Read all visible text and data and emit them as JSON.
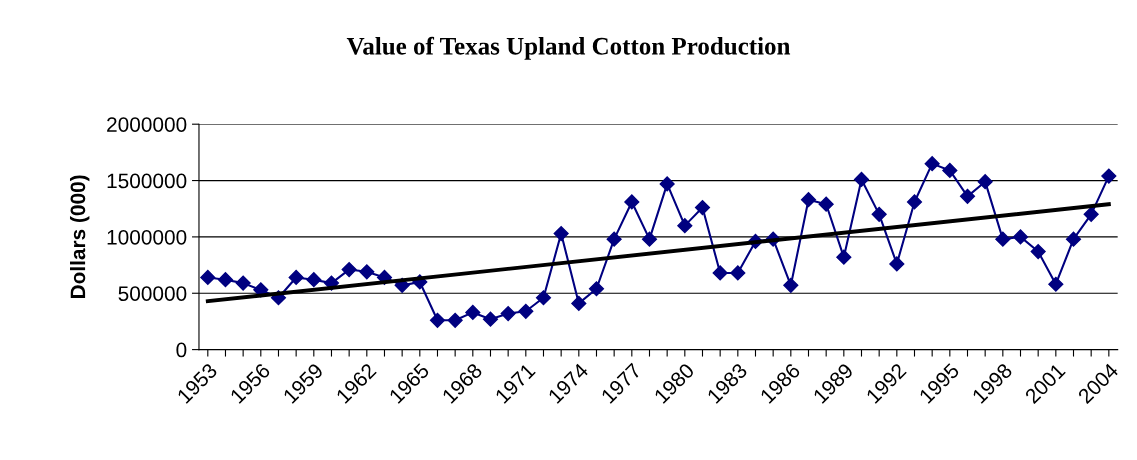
{
  "chart_data": {
    "type": "line",
    "title": "Value of Texas Upland Cotton Production",
    "ylabel": "Dollars (000)",
    "x": [
      1953,
      1954,
      1955,
      1956,
      1957,
      1958,
      1959,
      1960,
      1961,
      1962,
      1963,
      1964,
      1965,
      1966,
      1967,
      1968,
      1969,
      1970,
      1971,
      1972,
      1973,
      1974,
      1975,
      1976,
      1977,
      1978,
      1979,
      1980,
      1981,
      1982,
      1983,
      1984,
      1985,
      1986,
      1987,
      1988,
      1989,
      1990,
      1991,
      1992,
      1993,
      1994,
      1995,
      1996,
      1997,
      1998,
      1999,
      2000,
      2001,
      2002,
      2003,
      2004
    ],
    "series": [
      {
        "color": "#000080",
        "marker": "diamond",
        "values": [
          640000,
          620000,
          590000,
          530000,
          460000,
          640000,
          620000,
          590000,
          710000,
          690000,
          640000,
          570000,
          600000,
          260000,
          260000,
          330000,
          270000,
          320000,
          340000,
          460000,
          1030000,
          410000,
          540000,
          980000,
          1310000,
          980000,
          1470000,
          1100000,
          1260000,
          680000,
          680000,
          960000,
          980000,
          570000,
          1330000,
          1290000,
          820000,
          1510000,
          1200000,
          760000,
          1310000,
          1650000,
          1590000,
          1360000,
          1490000,
          980000,
          1000000,
          870000,
          580000,
          980000,
          1200000,
          1540000
        ]
      },
      {
        "type": "line",
        "color": "#000000",
        "marker": "none",
        "x": [
          1953,
          2004
        ],
        "values": [
          430000,
          1290000
        ]
      }
    ],
    "xlim": [
      1952.5,
      2004.5
    ],
    "xticks": [
      1953,
      {
        "value": 1954,
        "label": null
      },
      {
        "value": 1955,
        "label": null
      },
      1956,
      {
        "value": 1957,
        "label": null
      },
      {
        "value": 1958,
        "label": null
      },
      1959,
      {
        "value": 1960,
        "label": null
      },
      {
        "value": 1961,
        "label": null
      },
      1962,
      {
        "value": 1963,
        "label": null
      },
      {
        "value": 1964,
        "label": null
      },
      1965,
      {
        "value": 1966,
        "label": null
      },
      {
        "value": 1967,
        "label": null
      },
      1968,
      {
        "value": 1969,
        "label": null
      },
      {
        "value": 1970,
        "label": null
      },
      1971,
      {
        "value": 1972,
        "label": null
      },
      {
        "value": 1973,
        "label": null
      },
      1974,
      {
        "value": 1975,
        "label": null
      },
      {
        "value": 1976,
        "label": null
      },
      1977,
      {
        "value": 1978,
        "label": null
      },
      {
        "value": 1979,
        "label": null
      },
      1980,
      {
        "value": 1981,
        "label": null
      },
      {
        "value": 1982,
        "label": null
      },
      1983,
      {
        "value": 1984,
        "label": null
      },
      {
        "value": 1985,
        "label": null
      },
      1986,
      {
        "value": 1987,
        "label": null
      },
      {
        "value": 1988,
        "label": null
      },
      1989,
      {
        "value": 1990,
        "label": null
      },
      {
        "value": 1991,
        "label": null
      },
      1992,
      {
        "value": 1993,
        "label": null
      },
      {
        "value": 1994,
        "label": null
      },
      1995,
      {
        "value": 1996,
        "label": null
      },
      {
        "value": 1997,
        "label": null
      },
      1998,
      {
        "value": 1999,
        "label": null
      },
      {
        "value": 2000,
        "label": null
      },
      2001,
      {
        "value": 2002,
        "label": null
      },
      {
        "value": 2003,
        "label": null
      },
      2004
    ],
    "ylim": [
      0,
      2000000
    ],
    "yticks": [
      0,
      500000,
      1000000,
      1500000,
      2000000
    ],
    "grid": "y",
    "line_style": "solid"
  }
}
